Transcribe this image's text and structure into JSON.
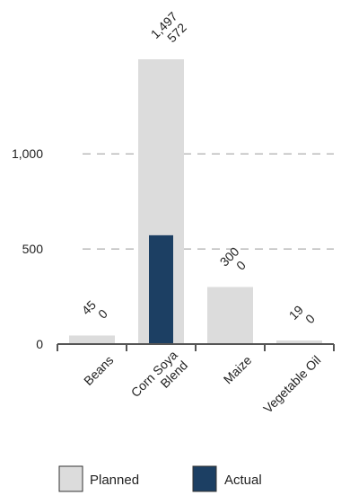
{
  "chart_data": {
    "type": "bar",
    "categories": [
      "Beans",
      "Corn Soya Blend",
      "Maize",
      "Vegetable Oil"
    ],
    "category_label_lines": [
      [
        "Beans"
      ],
      [
        "Corn Soya",
        "Blend"
      ],
      [
        "Maize"
      ],
      [
        "Vegetable Oil"
      ]
    ],
    "series": [
      {
        "name": "Planned",
        "values": [
          45,
          1497,
          300,
          19
        ],
        "labels": [
          "45",
          "1,497",
          "300",
          "19"
        ],
        "color": "#dcdcdc"
      },
      {
        "name": "Actual",
        "values": [
          0,
          572,
          0,
          0
        ],
        "labels": [
          "0",
          "572",
          "0",
          "0"
        ],
        "color": "#1c3f63"
      }
    ],
    "ylim": [
      0,
      1500
    ],
    "yticks": [
      0,
      500,
      1000
    ],
    "ytick_labels": [
      "0",
      "500",
      "1,000"
    ],
    "grid": "dashed horizontal",
    "legend_position": "bottom"
  }
}
